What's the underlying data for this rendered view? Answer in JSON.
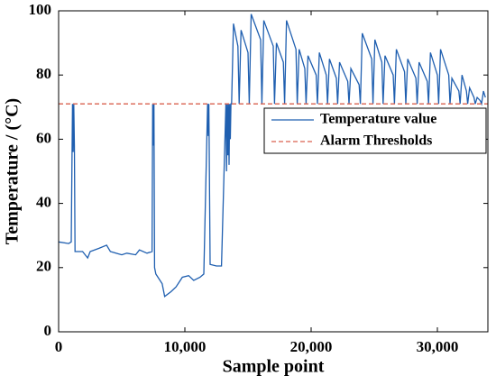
{
  "chart_data": {
    "type": "line",
    "xlabel": "Sample point",
    "ylabel": "Temperature / (°C)",
    "xlim": [
      0,
      34000
    ],
    "ylim": [
      0,
      100
    ],
    "xticks": [
      0,
      {
        "value": 10000,
        "label": "10,000"
      },
      {
        "value": 20000,
        "label": "20,000"
      },
      {
        "value": 30000,
        "label": "30,000"
      }
    ],
    "yticks": [
      0,
      20,
      40,
      60,
      80,
      100
    ],
    "legend": "upper right",
    "series": [
      {
        "name": "Temperature value",
        "color": "#1f5fb0",
        "style": "solid",
        "x": [
          0,
          800,
          1000,
          1100,
          1150,
          1200,
          1250,
          1300,
          1900,
          2300,
          2500,
          3200,
          3800,
          4100,
          5000,
          5400,
          6100,
          6400,
          7000,
          7400,
          7450,
          7500,
          7550,
          7600,
          7700,
          8200,
          8400,
          8900,
          9300,
          9800,
          10300,
          10700,
          11200,
          11500,
          11800,
          11850,
          11900,
          12000,
          12500,
          12900,
          13250,
          13300,
          13350,
          13400,
          13450,
          13500,
          13550,
          13600,
          13650,
          13700,
          13850,
          14200,
          14300,
          14450,
          15000,
          15100,
          15250,
          16000,
          16100,
          16250,
          17000,
          17100,
          17250,
          17800,
          17900,
          18050,
          18800,
          18900,
          19050,
          19500,
          19600,
          19750,
          20400,
          20500,
          20650,
          21200,
          21300,
          21450,
          22000,
          22100,
          22250,
          22900,
          23000,
          23150,
          23800,
          23900,
          24050,
          24800,
          24900,
          25050,
          25600,
          25700,
          25850,
          26500,
          26600,
          26750,
          27400,
          27500,
          27650,
          28300,
          28400,
          28550,
          29200,
          29300,
          29450,
          30000,
          30100,
          30250,
          30900,
          31000,
          31150,
          31700,
          31800,
          31950,
          32300,
          32400,
          32550,
          32900,
          33000,
          33150,
          33400,
          33500,
          33650,
          33800
        ],
        "values": [
          28,
          27.5,
          28,
          71,
          56,
          71,
          58,
          25,
          25,
          23,
          25,
          26,
          27,
          25,
          24,
          24.5,
          24,
          25.5,
          24.5,
          25,
          71,
          58,
          71,
          20,
          18,
          15,
          11,
          12.5,
          14,
          17,
          17.5,
          16,
          17,
          18,
          71,
          61,
          71,
          21,
          20.5,
          20.5,
          71,
          50,
          71,
          55,
          71,
          52,
          71,
          60,
          71,
          71,
          96,
          89,
          71,
          94,
          87,
          71,
          99,
          91,
          71,
          97,
          89,
          71,
          90,
          84,
          71,
          97,
          88,
          71,
          88,
          82,
          71,
          86,
          80,
          71,
          87,
          80,
          71,
          85,
          79,
          71,
          84,
          78,
          71,
          82,
          77,
          71,
          93,
          85,
          71,
          91,
          84,
          71,
          86,
          80,
          71,
          88,
          81,
          71,
          85,
          79,
          71,
          84,
          78,
          71,
          87,
          80,
          71,
          88,
          80,
          71,
          79,
          75,
          71,
          80,
          75,
          71,
          76,
          73,
          71,
          73,
          72,
          71,
          75,
          73
        ]
      },
      {
        "name": "Alarm Thresholds",
        "color": "#d9604f",
        "style": "dashed",
        "x": [
          0,
          34000
        ],
        "values": [
          71,
          71
        ]
      }
    ]
  }
}
